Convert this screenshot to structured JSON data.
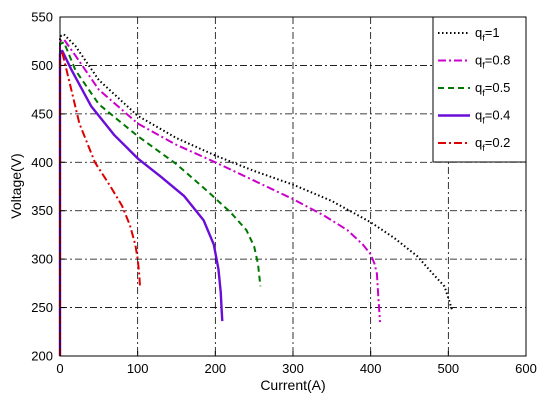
{
  "chart_data": {
    "type": "line",
    "title": "",
    "xlabel": "Current(A)",
    "ylabel": "Voltage(V)",
    "xlim": [
      0,
      600
    ],
    "ylim": [
      200,
      550
    ],
    "xticks": [
      0,
      100,
      200,
      300,
      400,
      500,
      600
    ],
    "yticks": [
      200,
      250,
      300,
      350,
      400,
      450,
      500,
      550
    ],
    "grid": true,
    "legend_position": "top-right",
    "series": [
      {
        "name": "q_f=1",
        "legend_base": "q",
        "legend_sub": "f",
        "legend_rest": "=1",
        "color": "#000000",
        "style": "dotted",
        "x": [
          0,
          0,
          5,
          20,
          50,
          100,
          150,
          200,
          250,
          300,
          350,
          400,
          430,
          460,
          480,
          495,
          500,
          503,
          505
        ],
        "y": [
          200,
          530,
          532,
          520,
          485,
          448,
          425,
          407,
          391,
          377,
          360,
          338,
          322,
          303,
          285,
          272,
          260,
          252,
          247
        ]
      },
      {
        "name": "q_f=0.8",
        "legend_base": "q",
        "legend_sub": "f",
        "legend_rest": "=0.8",
        "color": "#cc00cc",
        "style": "dashdot",
        "x": [
          0,
          0,
          5,
          20,
          50,
          100,
          150,
          200,
          250,
          300,
          340,
          370,
          390,
          400,
          405,
          408,
          410,
          412
        ],
        "y": [
          200,
          525,
          527,
          510,
          475,
          440,
          418,
          400,
          381,
          362,
          345,
          330,
          315,
          305,
          295,
          285,
          260,
          235
        ]
      },
      {
        "name": "q_f=0.5",
        "legend_base": "q",
        "legend_sub": "f",
        "legend_rest": "=0.5",
        "color": "#007700",
        "style": "dashed",
        "x": [
          0,
          0,
          5,
          20,
          50,
          100,
          150,
          190,
          220,
          240,
          250,
          255,
          258
        ],
        "y": [
          200,
          522,
          524,
          495,
          460,
          427,
          398,
          370,
          348,
          330,
          313,
          295,
          272
        ]
      },
      {
        "name": "q_f=0.4",
        "legend_base": "q",
        "legend_sub": "f",
        "legend_rest": "=0.4",
        "color": "#6a0dd9",
        "style": "solid",
        "x": [
          0,
          0,
          3,
          15,
          40,
          70,
          100,
          130,
          160,
          185,
          198,
          204,
          207,
          208,
          209
        ],
        "y": [
          200,
          512,
          515,
          495,
          458,
          428,
          404,
          385,
          365,
          340,
          315,
          290,
          265,
          250,
          236
        ]
      },
      {
        "name": "q_f=0.2",
        "legend_base": "q",
        "legend_sub": "f",
        "legend_rest": "=0.2",
        "color": "#dd0000",
        "style": "dashdot",
        "x": [
          0,
          0,
          3,
          10,
          25,
          45,
          65,
          80,
          90,
          97,
          100,
          102,
          103
        ],
        "y": [
          200,
          510,
          513,
          490,
          440,
          400,
          375,
          355,
          335,
          315,
          300,
          285,
          272
        ]
      }
    ]
  }
}
